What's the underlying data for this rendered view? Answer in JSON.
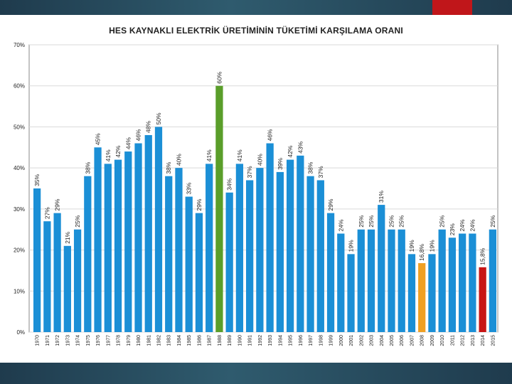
{
  "colors": {
    "bar_default": "#1b8fd6",
    "bar_highlight_green": "#5a9e2a",
    "bar_highlight_orange": "#f0a023",
    "bar_highlight_red": "#c81414",
    "header_band": "#1f3b4d",
    "header_accent": "#c0161a"
  },
  "chart_data": {
    "type": "bar",
    "title": "HES KAYNAKLI ELEKTRİK ÜRETİMİNİN TÜKETİMİ KARŞILAMA ORANI",
    "xlabel": "",
    "ylabel": "",
    "ylim": [
      0,
      70
    ],
    "yticks": [
      0,
      10,
      20,
      30,
      40,
      50,
      60,
      70
    ],
    "ytick_labels": [
      "0%",
      "10%",
      "20%",
      "30%",
      "40%",
      "50%",
      "60%",
      "70%"
    ],
    "grid": true,
    "legend": "none",
    "categories": [
      "1970",
      "1971",
      "1972",
      "1973",
      "1974",
      "1975",
      "1976",
      "1977",
      "1978",
      "1979",
      "1980",
      "1981",
      "1982",
      "1983",
      "1984",
      "1985",
      "1986",
      "1987",
      "1988",
      "1989",
      "1990",
      "1991",
      "1992",
      "1993",
      "1994",
      "1995",
      "1996",
      "1997",
      "1998",
      "1999",
      "2000",
      "2001",
      "2002",
      "2003",
      "2004",
      "2005",
      "2006",
      "2007",
      "2008",
      "2009",
      "2010",
      "2011",
      "2012",
      "2013",
      "2014",
      "2015"
    ],
    "values": [
      35,
      27,
      29,
      21,
      25,
      38,
      45,
      41,
      42,
      44,
      46,
      48,
      50,
      38,
      40,
      33,
      29,
      41,
      60,
      34,
      41,
      37,
      40,
      46,
      39,
      42,
      43,
      38,
      37,
      29,
      24,
      19,
      25,
      25,
      31,
      25,
      25,
      19,
      16.8,
      19,
      25,
      23,
      24,
      24,
      15.8,
      25
    ],
    "data_labels": [
      "35%",
      "27%",
      "29%",
      "21%",
      "25%",
      "38%",
      "45%",
      "41%",
      "42%",
      "44%",
      "46%",
      "48%",
      "50%",
      "38%",
      "40%",
      "33%",
      "29%",
      "41%",
      "60%",
      "34%",
      "41%",
      "37%",
      "40%",
      "46%",
      "39%",
      "42%",
      "43%",
      "38%",
      "37%",
      "29%",
      "24%",
      "19%",
      "25%",
      "25%",
      "31%",
      "25%",
      "25%",
      "19%",
      "16,8%",
      "19%",
      "25%",
      "23%",
      "24%",
      "24%",
      "15,8%",
      "25%"
    ],
    "highlights": {
      "1988": "bar_highlight_green",
      "2008": "bar_highlight_orange",
      "2014": "bar_highlight_red"
    }
  }
}
